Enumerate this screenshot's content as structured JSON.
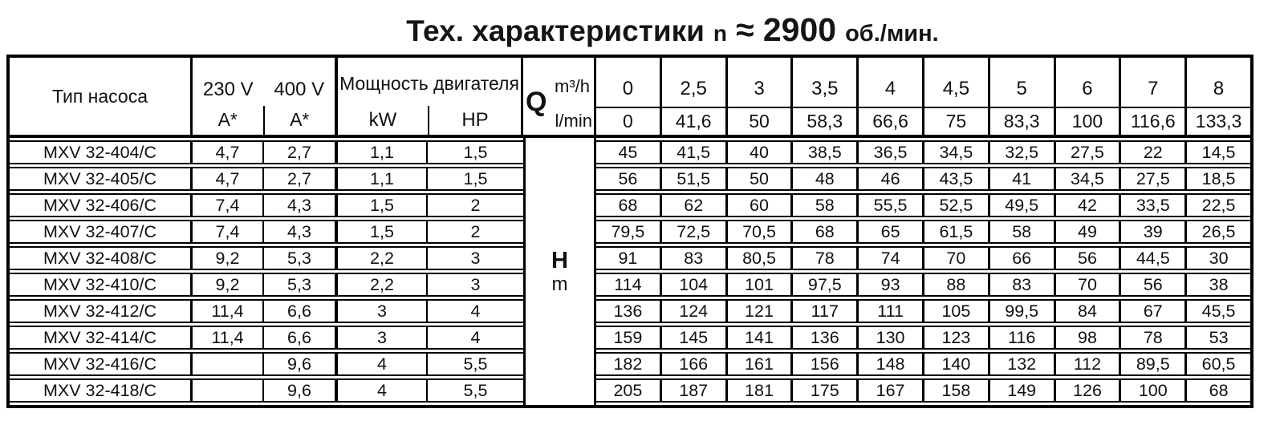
{
  "title": {
    "main": "Тех. характеристики",
    "rev_label": "n",
    "approx_value": "≈ 2900",
    "unit": "об./мин."
  },
  "colors": {
    "ink": "#111111",
    "background": "#ffffff"
  },
  "table": {
    "headers": {
      "pump_type": "Тип насоса",
      "volt230": "230 V",
      "volt400": "400 V",
      "amp_label": "A*",
      "power": "Мощность двигателя",
      "kw": "kW",
      "hp": "HP",
      "q_label": "Q",
      "q_unit_top": "m³/h",
      "q_unit_bottom": "l/min",
      "h_label": "H",
      "h_unit": "m"
    },
    "flow_m3h": [
      "0",
      "2,5",
      "3",
      "3,5",
      "4",
      "4,5",
      "5",
      "6",
      "7",
      "8"
    ],
    "flow_lmin": [
      "0",
      "41,6",
      "50",
      "58,3",
      "66,6",
      "75",
      "83,3",
      "100",
      "116,6",
      "133,3"
    ],
    "rows": [
      {
        "type": "MXV 32-404/C",
        "a230": "4,7",
        "a400": "2,7",
        "kw": "1,1",
        "hp": "1,5",
        "h": [
          "45",
          "41,5",
          "40",
          "38,5",
          "36,5",
          "34,5",
          "32,5",
          "27,5",
          "22",
          "14,5"
        ]
      },
      {
        "type": "MXV 32-405/C",
        "a230": "4,7",
        "a400": "2,7",
        "kw": "1,1",
        "hp": "1,5",
        "h": [
          "56",
          "51,5",
          "50",
          "48",
          "46",
          "43,5",
          "41",
          "34,5",
          "27,5",
          "18,5"
        ]
      },
      {
        "type": "MXV 32-406/C",
        "a230": "7,4",
        "a400": "4,3",
        "kw": "1,5",
        "hp": "2",
        "h": [
          "68",
          "62",
          "60",
          "58",
          "55,5",
          "52,5",
          "49,5",
          "42",
          "33,5",
          "22,5"
        ]
      },
      {
        "type": "MXV 32-407/C",
        "a230": "7,4",
        "a400": "4,3",
        "kw": "1,5",
        "hp": "2",
        "h": [
          "79,5",
          "72,5",
          "70,5",
          "68",
          "65",
          "61,5",
          "58",
          "49",
          "39",
          "26,5"
        ]
      },
      {
        "type": "MXV 32-408/C",
        "a230": "9,2",
        "a400": "5,3",
        "kw": "2,2",
        "hp": "3",
        "h": [
          "91",
          "83",
          "80,5",
          "78",
          "74",
          "70",
          "66",
          "56",
          "44,5",
          "30"
        ]
      },
      {
        "type": "MXV 32-410/C",
        "a230": "9,2",
        "a400": "5,3",
        "kw": "2,2",
        "hp": "3",
        "h": [
          "114",
          "104",
          "101",
          "97,5",
          "93",
          "88",
          "83",
          "70",
          "56",
          "38"
        ]
      },
      {
        "type": "MXV 32-412/C",
        "a230": "11,4",
        "a400": "6,6",
        "kw": "3",
        "hp": "4",
        "h": [
          "136",
          "124",
          "121",
          "117",
          "111",
          "105",
          "99,5",
          "84",
          "67",
          "45,5"
        ]
      },
      {
        "type": "MXV 32-414/C",
        "a230": "11,4",
        "a400": "6,6",
        "kw": "3",
        "hp": "4",
        "h": [
          "159",
          "145",
          "141",
          "136",
          "130",
          "123",
          "116",
          "98",
          "78",
          "53"
        ]
      },
      {
        "type": "MXV 32-416/C",
        "a230": "",
        "a400": "9,6",
        "kw": "4",
        "hp": "5,5",
        "h": [
          "182",
          "166",
          "161",
          "156",
          "148",
          "140",
          "132",
          "112",
          "89,5",
          "60,5"
        ]
      },
      {
        "type": "MXV 32-418/C",
        "a230": "",
        "a400": "9,6",
        "kw": "4",
        "hp": "5,5",
        "h": [
          "205",
          "187",
          "181",
          "175",
          "167",
          "158",
          "149",
          "126",
          "100",
          "68"
        ]
      }
    ]
  }
}
